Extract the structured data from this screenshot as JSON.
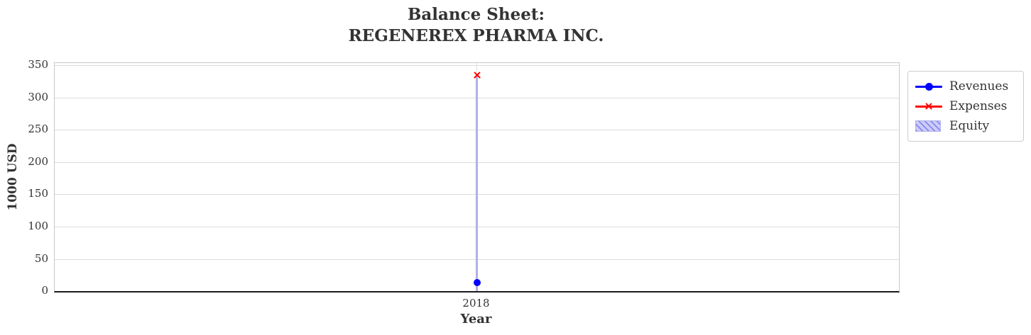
{
  "title": {
    "line1": "Balance Sheet:",
    "line2": "REGENEREX PHARMA INC."
  },
  "y_axis": {
    "label": "1000 USD"
  },
  "x_axis": {
    "label": "Year"
  },
  "legend": {
    "items": [
      {
        "label": "Revenues",
        "marker": "circle-on-line",
        "color": "#0000ff"
      },
      {
        "label": "Expenses",
        "marker": "x-on-line",
        "color": "#ff0000"
      },
      {
        "label": "Equity",
        "marker": "hatched-patch",
        "fill": "#ccccf7",
        "hatch_color": "#8888ee",
        "edge_color": "#b0b0f0"
      }
    ]
  },
  "chart_data": {
    "type": "line",
    "x": [
      "2018"
    ],
    "series": [
      {
        "name": "Revenues",
        "type": "line",
        "marker": "circle",
        "color": "#0000ff",
        "values": [
          13
        ]
      },
      {
        "name": "Expenses",
        "type": "line",
        "marker": "x",
        "color": "#ff0000",
        "values": [
          335
        ]
      },
      {
        "name": "Equity",
        "type": "bar",
        "color": "#b0b0e8",
        "fill": "#ccccf7",
        "hatch": "diagonal",
        "values": [
          335
        ]
      }
    ],
    "title": "Balance Sheet:\nREGENEREX PHARMA INC.",
    "xlabel": "Year",
    "ylabel": "1000 USD",
    "ylim": [
      0,
      350
    ],
    "y_ticks": [
      0,
      50,
      100,
      150,
      200,
      250,
      300,
      350
    ],
    "grid": true,
    "grid_color": "#dcdcdc",
    "legend_position": "upper right, outside axes",
    "text_color": "#333333"
  }
}
